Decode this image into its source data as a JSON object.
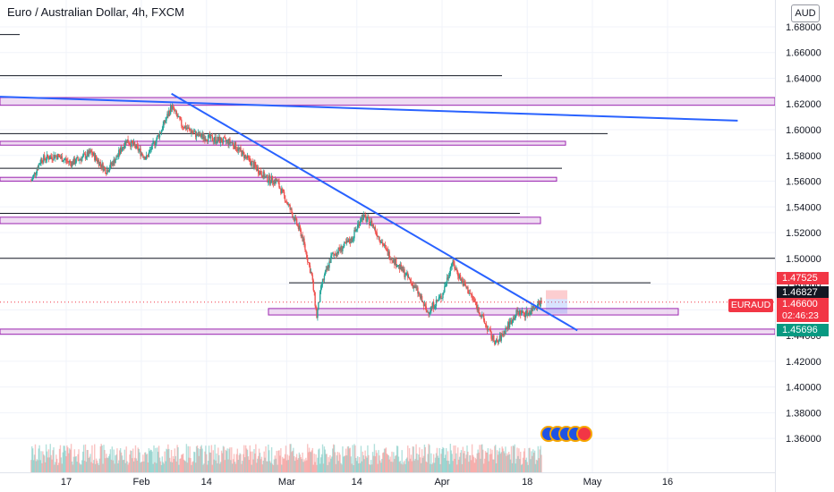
{
  "header": {
    "title": "Euro / Australian Dollar, 4h, FXCM",
    "currency_button": "AUD"
  },
  "price_tags": {
    "symbol": "EURAUD",
    "high_label": "1.47525",
    "line_label": "1.46827",
    "current_label": "1.46600",
    "countdown": "02:46:23",
    "low_label": "1.45696"
  },
  "colors": {
    "trendline": "#2962ff",
    "zone_fill": "#e1bee7",
    "zone_border": "#9c27b0",
    "up_candle": "#26a69a",
    "down_candle": "#ef5350",
    "grid": "#f0f3fa",
    "level_line": "#131722"
  },
  "chart_data": {
    "type": "candlestick",
    "title": "Euro / Australian Dollar, 4h, FXCM",
    "y_axis": {
      "range": [
        1.355,
        1.695
      ],
      "ticks": [
        "1.68000",
        "1.66000",
        "1.64000",
        "1.62000",
        "1.60000",
        "1.58000",
        "1.56000",
        "1.54000",
        "1.52000",
        "1.50000",
        "1.48000",
        "1.46000",
        "1.44000",
        "1.42000",
        "1.40000",
        "1.38000",
        "1.36000"
      ]
    },
    "x_axis": {
      "ticks": [
        "17",
        "Feb",
        "14",
        "Mar",
        "14",
        "Apr",
        "18",
        "May",
        "16"
      ]
    },
    "price_path": [
      [
        "2024-01-10",
        1.56
      ],
      [
        "2024-01-12",
        1.577
      ],
      [
        "2024-01-15",
        1.58
      ],
      [
        "2024-01-18",
        1.574
      ],
      [
        "2024-01-22",
        1.582
      ],
      [
        "2024-01-25",
        1.568
      ],
      [
        "2024-01-27",
        1.578
      ],
      [
        "2024-01-29",
        1.592
      ],
      [
        "2024-01-31",
        1.586
      ],
      [
        "2024-02-02",
        1.578
      ],
      [
        "2024-02-05",
        1.6
      ],
      [
        "2024-02-07",
        1.618
      ],
      [
        "2024-02-09",
        1.604
      ],
      [
        "2024-02-12",
        1.596
      ],
      [
        "2024-02-15",
        1.593
      ],
      [
        "2024-02-19",
        1.59
      ],
      [
        "2024-02-22",
        1.578
      ],
      [
        "2024-02-26",
        1.562
      ],
      [
        "2024-02-28",
        1.56
      ],
      [
        "2024-03-01",
        1.544
      ],
      [
        "2024-03-04",
        1.518
      ],
      [
        "2024-03-06",
        1.486
      ],
      [
        "2024-03-07",
        1.455
      ],
      [
        "2024-03-08",
        1.48
      ],
      [
        "2024-03-10",
        1.502
      ],
      [
        "2024-03-12",
        1.508
      ],
      [
        "2024-03-14",
        1.515
      ],
      [
        "2024-03-16",
        1.533
      ],
      [
        "2024-03-18",
        1.527
      ],
      [
        "2024-03-21",
        1.505
      ],
      [
        "2024-03-25",
        1.486
      ],
      [
        "2024-03-27",
        1.475
      ],
      [
        "2024-03-29",
        1.458
      ],
      [
        "2024-04-01",
        1.471
      ],
      [
        "2024-04-02",
        1.484
      ],
      [
        "2024-04-03",
        1.497
      ],
      [
        "2024-04-05",
        1.482
      ],
      [
        "2024-04-07",
        1.47
      ],
      [
        "2024-04-09",
        1.454
      ],
      [
        "2024-04-11",
        1.438
      ],
      [
        "2024-04-12",
        1.434
      ],
      [
        "2024-04-14",
        1.447
      ],
      [
        "2024-04-16",
        1.458
      ],
      [
        "2024-04-18",
        1.457
      ],
      [
        "2024-04-20",
        1.465
      ],
      [
        "2024-04-21",
        1.466
      ]
    ],
    "horizontal_levels": [
      1.674,
      1.642,
      1.597,
      1.57,
      1.535,
      1.5,
      1.481
    ],
    "zones": [
      [
        1.619,
        1.625
      ],
      [
        1.588,
        1.591
      ],
      [
        1.56,
        1.563
      ],
      [
        1.527,
        1.532
      ],
      [
        1.456,
        1.461
      ],
      [
        1.441,
        1.445
      ]
    ],
    "trendlines": [
      [
        [
          "2024-01-01",
          1.626
        ],
        [
          "2024-05-30",
          1.607
        ]
      ],
      [
        [
          "2024-02-07",
          1.628
        ],
        [
          "2024-04-28",
          1.444
        ]
      ]
    ],
    "last_price": 1.466,
    "grid": true,
    "legend": "none"
  }
}
